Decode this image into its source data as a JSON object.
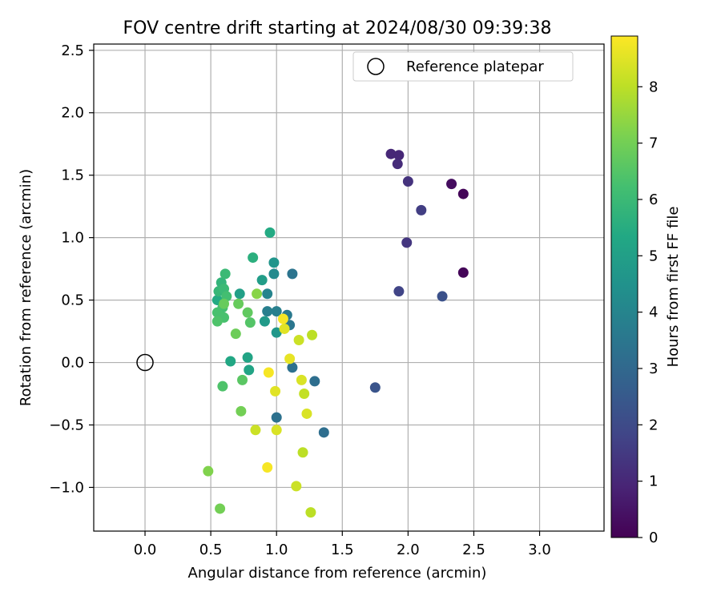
{
  "chart_data": {
    "type": "scatter",
    "title": "FOV centre drift starting at 2024/08/30 09:39:38",
    "xlabel": "Angular distance from reference (arcmin)",
    "ylabel": "Rotation from reference (arcmin)",
    "xlim": [
      -0.39,
      3.49
    ],
    "ylim": [
      -1.35,
      2.55
    ],
    "xticks": [
      0.0,
      0.5,
      1.0,
      1.5,
      2.0,
      2.5,
      3.0
    ],
    "xtick_labels": [
      "0.0",
      "0.5",
      "1.0",
      "1.5",
      "2.0",
      "2.5",
      "3.0"
    ],
    "yticks": [
      -1.0,
      -0.5,
      0.0,
      0.5,
      1.0,
      1.5,
      2.0,
      2.5
    ],
    "ytick_labels": [
      "−1.0",
      "−0.5",
      "0.0",
      "0.5",
      "1.0",
      "1.5",
      "2.0",
      "2.5"
    ],
    "grid": true,
    "legend": {
      "position": "top-right",
      "entries": [
        "Reference platepar"
      ]
    },
    "reference_point": {
      "label": "Reference platepar",
      "x": 0.0,
      "y": 0.0
    },
    "colorbar": {
      "label": "Hours from first FF file",
      "colormap": "viridis",
      "range": [
        0,
        8.9
      ],
      "ticks": [
        0,
        1,
        2,
        3,
        4,
        5,
        6,
        7,
        8
      ],
      "tick_labels": [
        "0",
        "1",
        "2",
        "3",
        "4",
        "5",
        "6",
        "7",
        "8"
      ]
    },
    "points": [
      {
        "x": 2.42,
        "y": 1.35,
        "hours": 0.1
      },
      {
        "x": 2.42,
        "y": 0.72,
        "hours": 0.1
      },
      {
        "x": 2.33,
        "y": 1.43,
        "hours": 0.3
      },
      {
        "x": 1.87,
        "y": 1.67,
        "hours": 1.0
      },
      {
        "x": 1.93,
        "y": 1.66,
        "hours": 1.0
      },
      {
        "x": 1.92,
        "y": 1.59,
        "hours": 1.1
      },
      {
        "x": 2.0,
        "y": 1.45,
        "hours": 1.3
      },
      {
        "x": 1.99,
        "y": 0.96,
        "hours": 1.4
      },
      {
        "x": 2.1,
        "y": 1.22,
        "hours": 1.6
      },
      {
        "x": 1.93,
        "y": 0.57,
        "hours": 1.8
      },
      {
        "x": 2.26,
        "y": 0.53,
        "hours": 2.2
      },
      {
        "x": 1.75,
        "y": -0.2,
        "hours": 2.3
      },
      {
        "x": 1.36,
        "y": -0.56,
        "hours": 3.2
      },
      {
        "x": 1.29,
        "y": -0.15,
        "hours": 3.2
      },
      {
        "x": 1.12,
        "y": -0.04,
        "hours": 3.3
      },
      {
        "x": 1.0,
        "y": -0.44,
        "hours": 3.3
      },
      {
        "x": 1.12,
        "y": 0.71,
        "hours": 3.4
      },
      {
        "x": 1.1,
        "y": 0.3,
        "hours": 3.5
      },
      {
        "x": 1.08,
        "y": 0.38,
        "hours": 3.6
      },
      {
        "x": 1.0,
        "y": 0.41,
        "hours": 3.8
      },
      {
        "x": 0.93,
        "y": 0.41,
        "hours": 3.8
      },
      {
        "x": 0.93,
        "y": 0.55,
        "hours": 4.0
      },
      {
        "x": 0.98,
        "y": 0.71,
        "hours": 4.2
      },
      {
        "x": 0.98,
        "y": 0.8,
        "hours": 4.6
      },
      {
        "x": 1.0,
        "y": 0.24,
        "hours": 4.7
      },
      {
        "x": 0.91,
        "y": 0.33,
        "hours": 4.8
      },
      {
        "x": 0.89,
        "y": 0.66,
        "hours": 4.9
      },
      {
        "x": 0.72,
        "y": 0.55,
        "hours": 5.0
      },
      {
        "x": 0.79,
        "y": -0.06,
        "hours": 5.2
      },
      {
        "x": 0.78,
        "y": 0.04,
        "hours": 5.2
      },
      {
        "x": 0.65,
        "y": 0.01,
        "hours": 5.3
      },
      {
        "x": 0.95,
        "y": 1.04,
        "hours": 5.4
      },
      {
        "x": 0.82,
        "y": 0.84,
        "hours": 5.6
      },
      {
        "x": 0.55,
        "y": 0.5,
        "hours": 5.4
      },
      {
        "x": 0.58,
        "y": 0.64,
        "hours": 5.8
      },
      {
        "x": 0.56,
        "y": 0.57,
        "hours": 5.9
      },
      {
        "x": 0.61,
        "y": 0.71,
        "hours": 6.0
      },
      {
        "x": 0.6,
        "y": 0.59,
        "hours": 6.0
      },
      {
        "x": 0.62,
        "y": 0.53,
        "hours": 6.2
      },
      {
        "x": 0.59,
        "y": 0.44,
        "hours": 6.2
      },
      {
        "x": 0.55,
        "y": 0.4,
        "hours": 6.3
      },
      {
        "x": 0.6,
        "y": 0.36,
        "hours": 6.3
      },
      {
        "x": 0.55,
        "y": 0.33,
        "hours": 6.4
      },
      {
        "x": 0.59,
        "y": -0.19,
        "hours": 6.4
      },
      {
        "x": 0.8,
        "y": 0.32,
        "hours": 6.5
      },
      {
        "x": 0.74,
        "y": -0.14,
        "hours": 6.6
      },
      {
        "x": 0.78,
        "y": 0.4,
        "hours": 6.7
      },
      {
        "x": 0.6,
        "y": 0.47,
        "hours": 6.8
      },
      {
        "x": 0.71,
        "y": 0.47,
        "hours": 6.8
      },
      {
        "x": 0.69,
        "y": 0.23,
        "hours": 6.9
      },
      {
        "x": 0.73,
        "y": -0.39,
        "hours": 7.0
      },
      {
        "x": 0.57,
        "y": -1.17,
        "hours": 7.0
      },
      {
        "x": 0.48,
        "y": -0.87,
        "hours": 7.2
      },
      {
        "x": 0.85,
        "y": 0.55,
        "hours": 7.3
      },
      {
        "x": 1.27,
        "y": 0.22,
        "hours": 8.0
      },
      {
        "x": 1.26,
        "y": -1.2,
        "hours": 8.0
      },
      {
        "x": 1.2,
        "y": -0.72,
        "hours": 8.0
      },
      {
        "x": 1.21,
        "y": -0.25,
        "hours": 8.1
      },
      {
        "x": 1.15,
        "y": -0.99,
        "hours": 8.2
      },
      {
        "x": 1.17,
        "y": 0.18,
        "hours": 8.2
      },
      {
        "x": 0.84,
        "y": -0.54,
        "hours": 8.2
      },
      {
        "x": 1.23,
        "y": -0.41,
        "hours": 8.4
      },
      {
        "x": 1.19,
        "y": -0.14,
        "hours": 8.4
      },
      {
        "x": 1.0,
        "y": -0.54,
        "hours": 8.4
      },
      {
        "x": 0.99,
        "y": -0.23,
        "hours": 8.5
      },
      {
        "x": 1.06,
        "y": 0.27,
        "hours": 8.5
      },
      {
        "x": 1.1,
        "y": 0.03,
        "hours": 8.6
      },
      {
        "x": 1.05,
        "y": 0.35,
        "hours": 8.8
      },
      {
        "x": 0.93,
        "y": -0.84,
        "hours": 8.8
      },
      {
        "x": 0.94,
        "y": -0.08,
        "hours": 8.8
      }
    ]
  }
}
